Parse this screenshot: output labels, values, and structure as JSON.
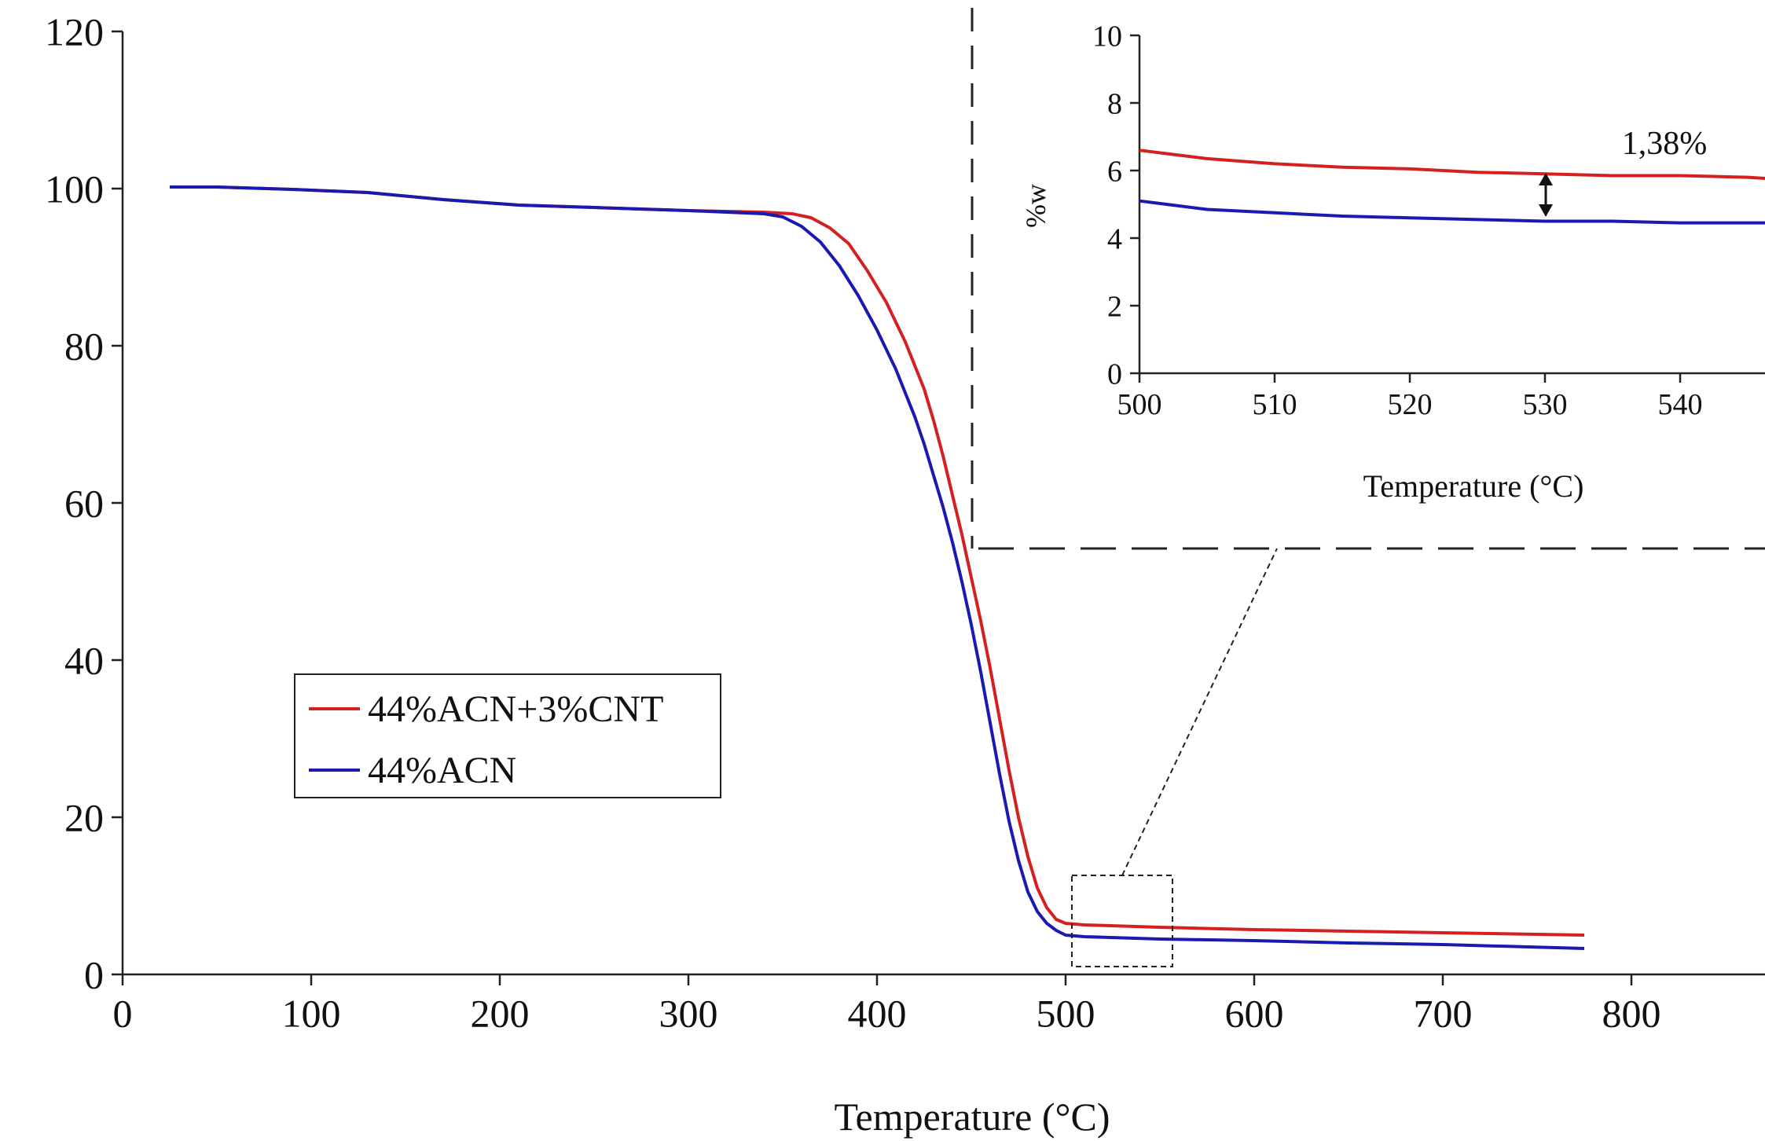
{
  "chart_data": [
    {
      "type": "line",
      "role": "main",
      "xlabel": "Temperature (°C)",
      "ylabel": "",
      "xlim": [
        0,
        870
      ],
      "ylim": [
        0,
        120
      ],
      "xticks": [
        0,
        100,
        200,
        300,
        400,
        500,
        600,
        700,
        800
      ],
      "yticks": [
        0,
        20,
        40,
        60,
        80,
        100,
        120
      ],
      "grid": false,
      "legend": {
        "position": "center-left",
        "entries": [
          "44%ACN+3%CNT",
          "44%ACN"
        ]
      },
      "series": [
        {
          "name": "44%ACN+3%CNT",
          "color": "#d42020",
          "x": [
            25,
            50,
            90,
            130,
            170,
            210,
            250,
            300,
            340,
            355,
            365,
            375,
            385,
            395,
            405,
            415,
            425,
            430,
            435,
            440,
            445,
            450,
            455,
            460,
            465,
            470,
            475,
            480,
            485,
            490,
            495,
            500,
            510,
            550,
            600,
            650,
            700,
            775
          ],
          "y": [
            100.2,
            100.2,
            99.9,
            99.5,
            98.6,
            97.9,
            97.6,
            97.2,
            97.0,
            96.8,
            96.3,
            95.0,
            93.0,
            89.5,
            85.5,
            80.5,
            74.5,
            70.5,
            66.0,
            61.0,
            56.0,
            50.5,
            45.0,
            39.0,
            32.5,
            26.0,
            20.0,
            15.0,
            11.0,
            8.5,
            7.0,
            6.5,
            6.3,
            6.0,
            5.7,
            5.5,
            5.3,
            5.0
          ]
        },
        {
          "name": "44%ACN",
          "color": "#1a1ab0",
          "x": [
            25,
            50,
            90,
            130,
            170,
            210,
            250,
            300,
            340,
            350,
            360,
            370,
            380,
            390,
            400,
            410,
            420,
            425,
            430,
            435,
            440,
            445,
            450,
            455,
            460,
            465,
            470,
            475,
            480,
            485,
            490,
            495,
            500,
            510,
            550,
            600,
            650,
            700,
            775
          ],
          "y": [
            100.2,
            100.2,
            99.9,
            99.5,
            98.6,
            97.9,
            97.6,
            97.2,
            96.8,
            96.4,
            95.2,
            93.2,
            90.2,
            86.4,
            82.0,
            77.0,
            71.0,
            67.5,
            63.5,
            59.5,
            55.0,
            50.0,
            44.5,
            38.5,
            32.0,
            25.5,
            19.5,
            14.5,
            10.5,
            8.0,
            6.5,
            5.6,
            5.0,
            4.8,
            4.5,
            4.3,
            4.0,
            3.8,
            3.3
          ]
        }
      ]
    },
    {
      "type": "line",
      "role": "inset",
      "xlabel": "Temperature (°C)",
      "ylabel": "%w",
      "xlim": [
        500,
        547
      ],
      "ylim": [
        0,
        10
      ],
      "xticks": [
        500,
        510,
        520,
        530,
        540
      ],
      "yticks": [
        0,
        2,
        4,
        6,
        8,
        10
      ],
      "grid": false,
      "annotation": {
        "text": "1,38%",
        "x": 530
      },
      "series": [
        {
          "name": "44%ACN+3%CNT",
          "color": "#d42020",
          "x": [
            500,
            502,
            505,
            510,
            515,
            520,
            525,
            530,
            535,
            540,
            545,
            547
          ],
          "y": [
            6.6,
            6.5,
            6.35,
            6.2,
            6.1,
            6.05,
            5.95,
            5.9,
            5.85,
            5.85,
            5.8,
            5.75
          ]
        },
        {
          "name": "44%ACN",
          "color": "#1a1ab0",
          "x": [
            500,
            502,
            505,
            510,
            515,
            520,
            525,
            530,
            535,
            540,
            545,
            547
          ],
          "y": [
            5.1,
            5.0,
            4.85,
            4.75,
            4.65,
            4.6,
            4.55,
            4.5,
            4.5,
            4.45,
            4.45,
            4.45
          ]
        }
      ]
    }
  ]
}
